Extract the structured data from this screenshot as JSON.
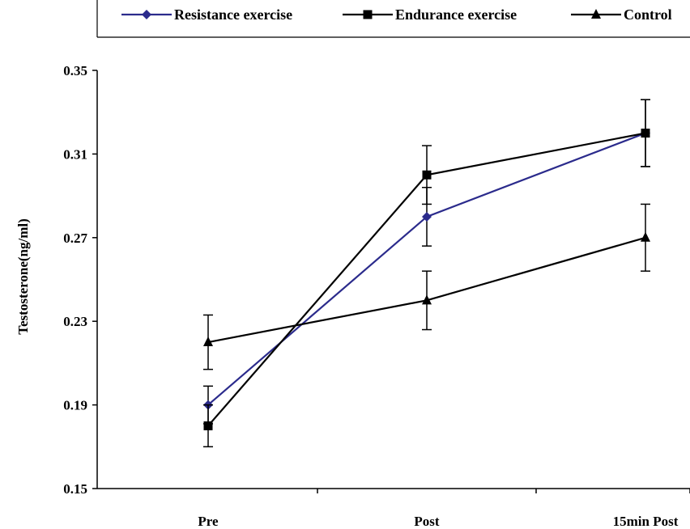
{
  "chart_data": {
    "type": "line",
    "title": "",
    "xlabel": "",
    "ylabel": "Testosterone(ng/ml)",
    "categories": [
      "Pre",
      "Post",
      "15min Post"
    ],
    "ylim": [
      0.15,
      0.35
    ],
    "yticks": [
      "0.15",
      "0.19",
      "0.23",
      "0.27",
      "0.31",
      "0.35"
    ],
    "legend_position": "top",
    "grid": false,
    "series": [
      {
        "name": "Resistance exercise",
        "color": "#2b2b8c",
        "marker": "diamond",
        "values": [
          0.19,
          0.28,
          0.32
        ],
        "errors": [
          0.009,
          0.014,
          0.016
        ]
      },
      {
        "name": "Endurance exercise",
        "color": "#000000",
        "marker": "square",
        "values": [
          0.18,
          0.3,
          0.32
        ],
        "errors": [
          0.01,
          0.014,
          0.016
        ]
      },
      {
        "name": "Control",
        "color": "#000000",
        "marker": "triangle",
        "values": [
          0.22,
          0.24,
          0.27
        ],
        "errors": [
          0.013,
          0.014,
          0.016
        ]
      }
    ]
  }
}
